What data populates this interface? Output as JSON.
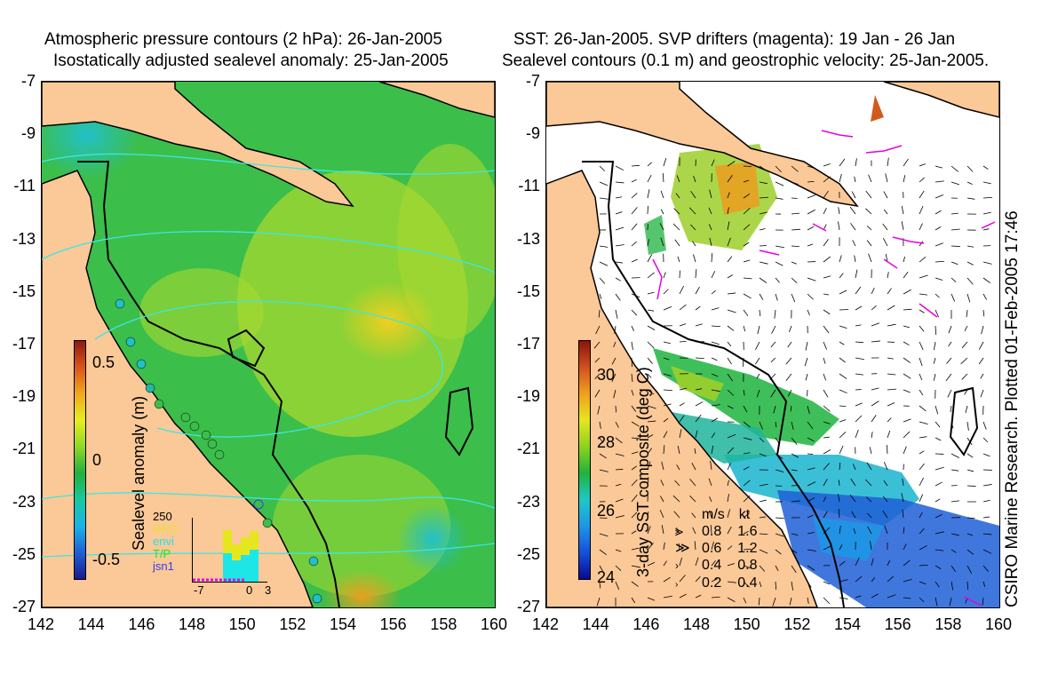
{
  "left_panel": {
    "title_line1": "Atmospheric pressure contours (2 hPa): 26-Jan-2005",
    "title_line2": "Isostatically adjusted sealevel anomaly: 25-Jan-2005",
    "x_ticks": [
      "142",
      "144",
      "146",
      "148",
      "150",
      "152",
      "154",
      "156",
      "158",
      "160"
    ],
    "y_ticks": [
      "-7",
      "-9",
      "-11",
      "-13",
      "-15",
      "-17",
      "-19",
      "-21",
      "-23",
      "-25",
      "-27"
    ],
    "colorbar": {
      "label": "Sealevel anomaly (m)",
      "ticks": [
        "0.5",
        "0",
        "-0.5"
      ],
      "range": [
        -0.7,
        0.7
      ],
      "colors": [
        "#1a1a8c",
        "#1f5fd6",
        "#19b4e6",
        "#17c8a0",
        "#22b03a",
        "#8fd82a",
        "#e6ee1e",
        "#f0a81e",
        "#d9561a",
        "#8c1a0f"
      ]
    },
    "inset": {
      "counts_label": "250",
      "x_ticks": [
        "-7",
        "0",
        "3"
      ],
      "legend": [
        {
          "label": "GFO",
          "color": "#e6e61e"
        },
        {
          "label": "envi",
          "color": "#1ee6e6"
        },
        {
          "label": "T/P",
          "color": "#1ee61e"
        },
        {
          "label": "jsn1",
          "color": "#3c3ce6"
        }
      ]
    }
  },
  "right_panel": {
    "title_line1": "SST: 26-Jan-2005. SVP drifters (magenta): 19 Jan - 26 Jan",
    "title_line2": "Sealevel contours (0.1 m) and geostrophic velocity: 25-Jan-2005.",
    "x_ticks": [
      "142",
      "144",
      "146",
      "148",
      "150",
      "152",
      "154",
      "156",
      "158",
      "160"
    ],
    "y_ticks": [
      "-7",
      "-9",
      "-11",
      "-13",
      "-15",
      "-17",
      "-19",
      "-21",
      "-23",
      "-25",
      "-27"
    ],
    "colorbar": {
      "label": "3-day SST composite (deg C)",
      "ticks": [
        "30",
        "28",
        "26",
        "24"
      ],
      "range": [
        24,
        31
      ],
      "colors": [
        "#0a0a8c",
        "#1450dc",
        "#1e96e6",
        "#1ec8c8",
        "#1eb43c",
        "#8cd21e",
        "#e6e61e",
        "#f0a01e",
        "#d2501e",
        "#8c140a"
      ]
    },
    "velocity_legend": {
      "header_ms": "m/s",
      "header_kt": "kt",
      "rows": [
        {
          "ms": "0.8",
          "kt": "1.6"
        },
        {
          "ms": "0.6",
          "kt": "1.2"
        },
        {
          "ms": "0.4",
          "kt": "0.8"
        },
        {
          "ms": "0.2",
          "kt": "0.4"
        }
      ]
    }
  },
  "credit": "CSIRO Marine Research. Plotted 01-Feb-2005 17:46",
  "map_extent": {
    "lon": [
      142,
      160
    ],
    "lat": [
      -27,
      -7
    ]
  },
  "colors": {
    "land": "#fbc897",
    "coast": "#000000",
    "pressure_contour": "#3ce6e6",
    "drifter": "#e600e6"
  }
}
